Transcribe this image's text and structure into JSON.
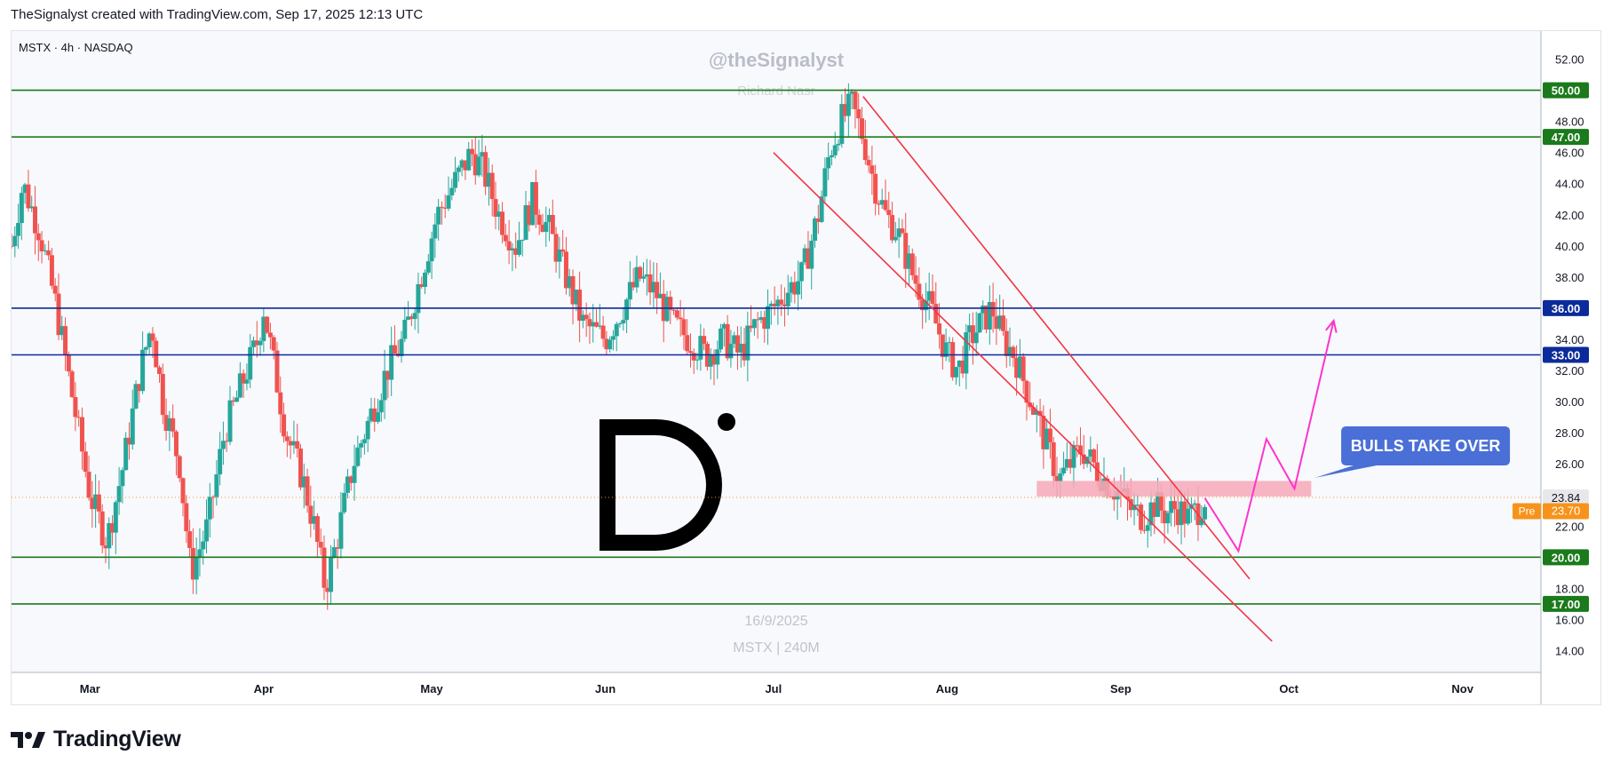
{
  "header": {
    "text": "TheSignalyst created with TradingView.com, Sep 17, 2025 12:13 UTC"
  },
  "footer": {
    "brand": "TradingView"
  },
  "colors": {
    "up": "#26a69a",
    "down": "#ef5350",
    "green_line": "#1b7a1b",
    "blue_line": "#0c2b9a",
    "channel": "#f23645",
    "zone": "#f7a9b8",
    "projection": "#ff33cc",
    "callout": "#4a6fd6",
    "pre": "#f7931a"
  },
  "chart_data": {
    "type": "candlestick",
    "symbol_label": "MSTX · 4h · NASDAQ",
    "watermark": {
      "handle": "@theSignalyst",
      "name": "Richard Nasr",
      "date": "16/9/2025",
      "ticker": "MSTX | 240M"
    },
    "y_range": [
      12.6,
      53.8
    ],
    "y_ticks": [
      14,
      16,
      18,
      20,
      22,
      24,
      26,
      28,
      30,
      32,
      34,
      36,
      38,
      40,
      42,
      44,
      46,
      48,
      50,
      52
    ],
    "y_tick_labels": [
      "14.00",
      "16.00",
      "18.00",
      "20.00",
      "22.00",
      "24.00",
      "26.00",
      "28.00",
      "30.00",
      "32.00",
      "34.00",
      "36.00",
      "38.00",
      "40.00",
      "42.00",
      "44.00",
      "46.00",
      "48.00",
      "50.00",
      "52.00"
    ],
    "x_range": [
      "2025-02-15",
      "2025-11-15"
    ],
    "x_ticks": [
      {
        "date": "2025-03-01",
        "label": "Mar"
      },
      {
        "date": "2025-04-01",
        "label": "Apr"
      },
      {
        "date": "2025-05-01",
        "label": "May"
      },
      {
        "date": "2025-06-01",
        "label": "Jun"
      },
      {
        "date": "2025-07-01",
        "label": "Jul"
      },
      {
        "date": "2025-08-01",
        "label": "Aug"
      },
      {
        "date": "2025-09-01",
        "label": "Sep"
      },
      {
        "date": "2025-10-01",
        "label": "Oct"
      },
      {
        "date": "2025-11-01",
        "label": "Nov"
      }
    ],
    "close_path": [
      [
        "2025-02-15",
        40
      ],
      [
        "2025-02-17",
        44
      ],
      [
        "2025-02-20",
        41
      ],
      [
        "2025-02-23",
        36
      ],
      [
        "2025-02-26",
        30
      ],
      [
        "2025-03-01",
        24
      ],
      [
        "2025-03-04",
        21
      ],
      [
        "2025-03-07",
        26
      ],
      [
        "2025-03-10",
        32
      ],
      [
        "2025-03-12",
        35
      ],
      [
        "2025-03-14",
        30
      ],
      [
        "2025-03-17",
        26
      ],
      [
        "2025-03-19",
        19
      ],
      [
        "2025-03-22",
        22
      ],
      [
        "2025-03-25",
        28
      ],
      [
        "2025-03-28",
        31
      ],
      [
        "2025-03-31",
        34
      ],
      [
        "2025-04-01",
        36
      ],
      [
        "2025-04-03",
        32
      ],
      [
        "2025-04-05",
        28
      ],
      [
        "2025-04-08",
        25
      ],
      [
        "2025-04-10",
        22
      ],
      [
        "2025-04-12",
        18
      ],
      [
        "2025-04-14",
        21
      ],
      [
        "2025-04-17",
        26
      ],
      [
        "2025-04-20",
        29
      ],
      [
        "2025-04-23",
        32
      ],
      [
        "2025-04-26",
        34
      ],
      [
        "2025-04-29",
        38
      ],
      [
        "2025-05-02",
        42
      ],
      [
        "2025-05-05",
        44
      ],
      [
        "2025-05-08",
        46
      ],
      [
        "2025-05-10",
        45
      ],
      [
        "2025-05-13",
        42
      ],
      [
        "2025-05-16",
        40
      ],
      [
        "2025-05-19",
        43
      ],
      [
        "2025-05-22",
        41
      ],
      [
        "2025-05-25",
        38
      ],
      [
        "2025-05-28",
        35
      ],
      [
        "2025-06-01",
        34
      ],
      [
        "2025-06-04",
        36
      ],
      [
        "2025-06-07",
        38
      ],
      [
        "2025-06-10",
        37
      ],
      [
        "2025-06-13",
        35
      ],
      [
        "2025-06-16",
        34
      ],
      [
        "2025-06-19",
        33
      ],
      [
        "2025-06-22",
        34
      ],
      [
        "2025-06-25",
        33
      ],
      [
        "2025-06-28",
        35
      ],
      [
        "2025-07-01",
        36
      ],
      [
        "2025-07-03",
        37
      ],
      [
        "2025-07-06",
        38
      ],
      [
        "2025-07-09",
        42
      ],
      [
        "2025-07-11",
        46
      ],
      [
        "2025-07-13",
        48
      ],
      [
        "2025-07-15",
        49
      ],
      [
        "2025-07-17",
        47
      ],
      [
        "2025-07-19",
        44
      ],
      [
        "2025-07-21",
        42
      ],
      [
        "2025-07-23",
        41
      ],
      [
        "2025-07-26",
        38
      ],
      [
        "2025-07-29",
        36
      ],
      [
        "2025-08-01",
        33
      ],
      [
        "2025-08-03",
        32
      ],
      [
        "2025-08-05",
        34
      ],
      [
        "2025-08-07",
        35
      ],
      [
        "2025-08-09",
        36
      ],
      [
        "2025-08-11",
        34
      ],
      [
        "2025-08-13",
        33
      ],
      [
        "2025-08-15",
        31
      ],
      [
        "2025-08-17",
        29
      ],
      [
        "2025-08-19",
        27
      ],
      [
        "2025-08-21",
        25
      ],
      [
        "2025-08-23",
        26
      ],
      [
        "2025-08-25",
        27
      ],
      [
        "2025-08-27",
        26
      ],
      [
        "2025-08-29",
        25
      ],
      [
        "2025-09-01",
        24
      ],
      [
        "2025-09-03",
        23
      ],
      [
        "2025-09-05",
        22.6
      ],
      [
        "2025-09-07",
        23.4
      ],
      [
        "2025-09-09",
        22.8
      ],
      [
        "2025-09-11",
        23.2
      ],
      [
        "2025-09-13",
        22.5
      ],
      [
        "2025-09-15",
        23.2
      ],
      [
        "2025-09-16",
        23.84
      ]
    ],
    "horizontal_levels": [
      {
        "value": 50.0,
        "label": "50.00",
        "color": "green_line"
      },
      {
        "value": 47.0,
        "label": "47.00",
        "color": "green_line"
      },
      {
        "value": 36.0,
        "label": "36.00",
        "color": "blue_line"
      },
      {
        "value": 33.0,
        "label": "33.00",
        "color": "blue_line"
      },
      {
        "value": 20.0,
        "label": "20.00",
        "color": "green_line"
      },
      {
        "value": 17.0,
        "label": "17.00",
        "color": "green_line"
      }
    ],
    "last_price": {
      "value": 23.84,
      "label": "23.84"
    },
    "pre_market": {
      "tag": "Pre",
      "value": 23.7,
      "label": "23.70"
    },
    "channel": [
      {
        "from": [
          "2025-07-01",
          46.0
        ],
        "to": [
          "2025-09-28",
          14.6
        ]
      },
      {
        "from": [
          "2025-07-17",
          49.6
        ],
        "to": [
          "2025-09-24",
          18.6
        ]
      }
    ],
    "demand_zone": {
      "from": "2025-08-17",
      "to": "2025-10-05",
      "low": 23.9,
      "high": 24.9
    },
    "projection": [
      [
        "2025-09-16",
        23.8
      ],
      [
        "2025-09-22",
        20.4
      ],
      [
        "2025-09-27",
        27.6
      ],
      [
        "2025-10-02",
        24.4
      ],
      [
        "2025-10-09",
        35.2
      ]
    ],
    "callout": {
      "text": "BULLS TAKE OVER",
      "anchor": [
        "2025-10-04",
        25.1
      ]
    }
  }
}
